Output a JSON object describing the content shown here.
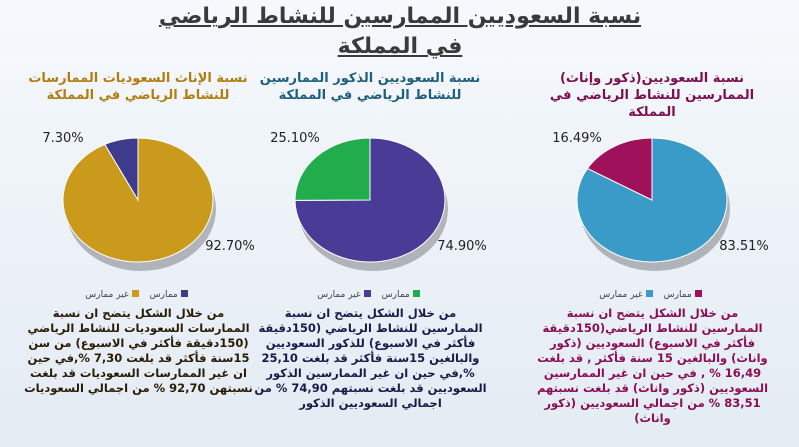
{
  "title": "نسبة السعوديين الممارسين للنشاط الرياضي في المملكة",
  "chart_data": [
    {
      "type": "pie",
      "title": "نسبة الإناث السعوديات الممارسات للنشاط الرياضي في المملكة",
      "categories": [
        "ممارس",
        "غير ممارس"
      ],
      "values": [
        7.3,
        92.7
      ],
      "value_labels": [
        "7.30%",
        "92.70%"
      ],
      "colors": [
        "#3e3a8c",
        "#c99a1c"
      ],
      "description": "من خلال الشكل يتضح ان نسبة الممارسات السعوديات للنشاط الرياضي (150دقيقة فأكثر في الاسبوع) من سن 15سنة فأكثر قد بلغت 7,30 %,في حين ان غير الممارسات السعوديات قد بلغت نسبتهن 92,70 % من اجمالي السعوديات"
    },
    {
      "type": "pie",
      "title": "نسبة السعوديين الذكور الممارسين للنشاط الرياضي في المملكة",
      "categories": [
        "ممارس",
        "غير ممارس"
      ],
      "values": [
        25.1,
        74.9
      ],
      "value_labels": [
        "25.10%",
        "74.90%"
      ],
      "colors": [
        "#22ad4c",
        "#4a3b96"
      ],
      "description": "من خلال الشكل يتضح ان نسبة الممارسين للنشاط الرياضي (150دقيقة فأكثر في الاسبوع) للذكور السعوديين والبالغين 15سنة فأكثر قد بلغت 25,10 %,في حين ان غير الممارسين الذكور السعوديين قد بلغت نسبتهم 74,90 % من اجمالي السعوديين الذكور"
    },
    {
      "type": "pie",
      "title": "نسبة السعوديين(ذكور وإناث) الممارسين للنشاط الرياضي في المملكة",
      "categories": [
        "ممارس",
        "غير ممارس"
      ],
      "values": [
        16.49,
        83.51
      ],
      "value_labels": [
        "16.49%",
        "83.51%"
      ],
      "colors": [
        "#a0115c",
        "#3a9bc9"
      ],
      "description": "من خلال الشكل يتضح ان نسبة الممارسين للنشاط الرياضي(150دقيقة فأكثر في الاسبوع) السعوديين (ذكور واناث) والبالغين 15 سنة فأكثر , قد بلغت 16,49 % , في حين ان غير الممارسين السعوديين (ذكور واناث) قد بلغت نسبتهم 83,51 % من اجمالي السعوديين (ذكور واناث)"
    }
  ]
}
